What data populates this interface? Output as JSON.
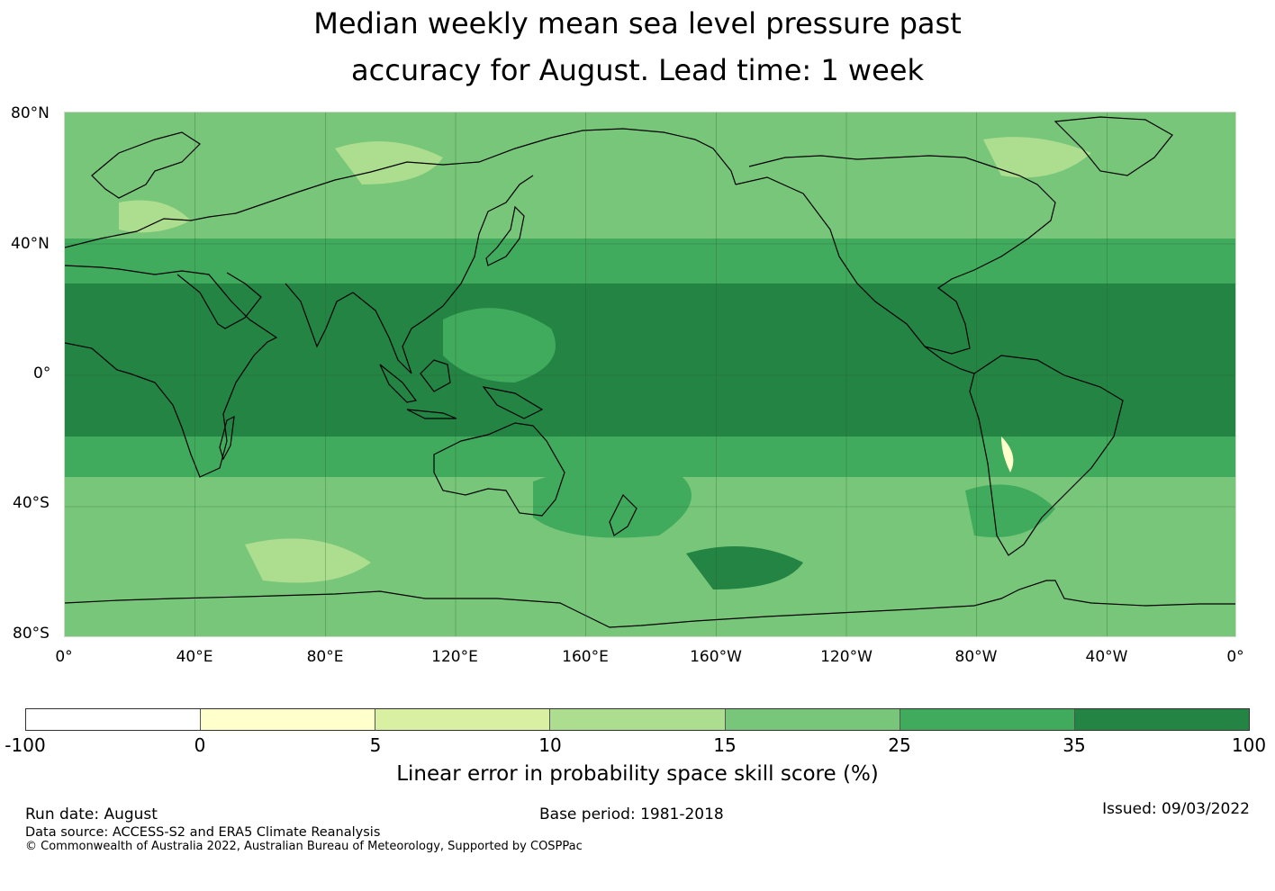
{
  "title": {
    "line1": "Median weekly mean sea level pressure past",
    "line2": "accuracy for August. Lead time: 1 week"
  },
  "map": {
    "lat_labels": [
      "80°N",
      "40°N",
      "0°",
      "40°S",
      "80°S"
    ],
    "lon_labels": [
      "0°",
      "40°E",
      "80°E",
      "120°E",
      "160°E",
      "160°W",
      "120°W",
      "80°W",
      "40°W",
      "0°"
    ],
    "coastline_color": "#000000",
    "gridline_color": "#2d5a2d"
  },
  "colorbar": {
    "ticks": [
      "-100",
      "0",
      "5",
      "10",
      "15",
      "25",
      "35",
      "100"
    ],
    "colors": [
      "#ffffff",
      "#ffffcc",
      "#d9f0a3",
      "#addd8e",
      "#78c679",
      "#41ab5d",
      "#238443"
    ],
    "label": "Linear error in probability space skill score (%)"
  },
  "footer": {
    "run_date": "Run date: August",
    "base_period": "Base period: 1981-2018",
    "issued": "Issued: 09/03/2022",
    "data_source": "Data source: ACCESS-S2 and ERA5 Climate Reanalysis",
    "copyright": "© Commonwealth of Australia 2022, Australian Bureau of Meteorology, Supported by COSPPac"
  }
}
